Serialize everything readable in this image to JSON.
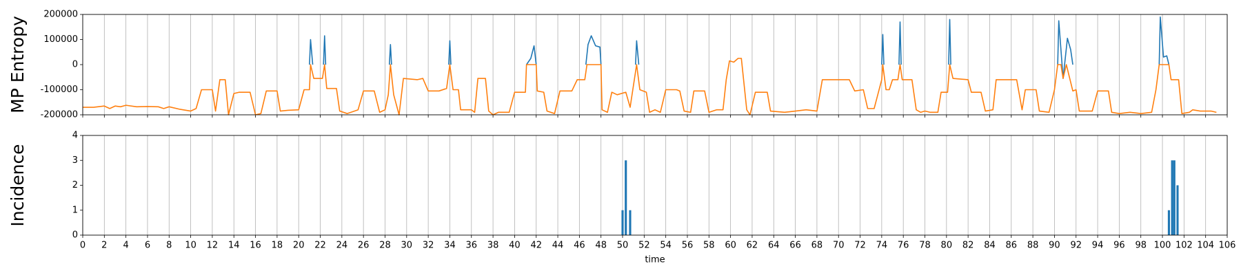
{
  "chart_data": [
    {
      "type": "line",
      "ylabel": "MP Entropy",
      "ylim": [
        -200000,
        200000
      ],
      "yticks": [
        -200000,
        -100000,
        0,
        100000,
        200000
      ],
      "xlim": [
        0,
        106
      ],
      "xticks": [
        0,
        2,
        4,
        6,
        8,
        10,
        12,
        14,
        16,
        18,
        20,
        22,
        24,
        26,
        28,
        30,
        32,
        34,
        36,
        38,
        40,
        42,
        44,
        46,
        48,
        50,
        52,
        54,
        56,
        58,
        60,
        62,
        64,
        66,
        68,
        70,
        72,
        74,
        76,
        78,
        80,
        82,
        84,
        86,
        88,
        90,
        92,
        94,
        96,
        98,
        100,
        102,
        104,
        106
      ],
      "grid": "x",
      "series": [
        {
          "color": "#1f77b4",
          "x": [
            21.0,
            21.1,
            21.3,
            null,
            22.3,
            22.4,
            22.5,
            null,
            28.4,
            28.5,
            28.6,
            null,
            33.9,
            34,
            34.1,
            null,
            41.1,
            41.5,
            41.8,
            42,
            null,
            46.6,
            46.8,
            47.1,
            47.5,
            47.9,
            48,
            null,
            51.2,
            51.3,
            51.5,
            null,
            74,
            74.1,
            74.2,
            null,
            75.6,
            75.7,
            75.8,
            null,
            80.2,
            80.3,
            80.4,
            null,
            90.3,
            90.4,
            90.8,
            91.2,
            91.5,
            91.7,
            null,
            99.7,
            99.8,
            100.1,
            100.4,
            100.6
          ],
          "values": [
            0,
            100000,
            0,
            null,
            0,
            115000,
            0,
            null,
            0,
            80000,
            0,
            null,
            0,
            95000,
            0,
            null,
            0,
            25000,
            75000,
            0,
            null,
            0,
            80000,
            115000,
            75000,
            70000,
            0,
            null,
            0,
            95000,
            0,
            null,
            0,
            120000,
            0,
            null,
            0,
            170000,
            0,
            null,
            0,
            180000,
            0,
            null,
            0,
            175000,
            -55000,
            105000,
            60000,
            0,
            null,
            0,
            190000,
            30000,
            35000,
            0
          ]
        },
        {
          "color": "#ff7f0e",
          "x": [
            0,
            1,
            2,
            2.5,
            3,
            3.5,
            4,
            5,
            6,
            7,
            7.5,
            8,
            9,
            10,
            10.5,
            11,
            12,
            12.3,
            12.7,
            13.2,
            13.5,
            14,
            14.5,
            15.5,
            16,
            16.5,
            17,
            18,
            18.3,
            19,
            20,
            20.5,
            21,
            21.1,
            21.4,
            22.2,
            22.4,
            22.6,
            23.5,
            23.8,
            24.5,
            25.5,
            26,
            27,
            27.5,
            28,
            28.3,
            28.5,
            28.8,
            29.3,
            29.7,
            31,
            31.5,
            32,
            33,
            33.7,
            34,
            34.3,
            34.8,
            35,
            36,
            36.3,
            36.6,
            37.3,
            37.6,
            38,
            38.5,
            39.5,
            40,
            41,
            41.1,
            42,
            42.1,
            42.7,
            43,
            43.7,
            44.2,
            45.3,
            45.8,
            46.5,
            46.7,
            48,
            48.1,
            48.6,
            49,
            49.5,
            50.3,
            50.7,
            51.3,
            51.6,
            52.2,
            52.5,
            53,
            53.5,
            54,
            55,
            55.3,
            55.7,
            56.3,
            56.6,
            57.6,
            58,
            58.7,
            59.3,
            59.6,
            59.9,
            60.3,
            60.7,
            61,
            61.5,
            61.8,
            62.3,
            63.4,
            63.7,
            65,
            66,
            67,
            68,
            68.5,
            69,
            71,
            71.5,
            72.3,
            72.7,
            73.3,
            74,
            74.1,
            74.4,
            74.7,
            75,
            75.5,
            75.7,
            75.9,
            76.8,
            77.2,
            77.6,
            78,
            78.5,
            79.2,
            79.5,
            80.1,
            80.3,
            80.6,
            82,
            82.3,
            83.2,
            83.6,
            84.3,
            84.6,
            86.5,
            87,
            87.3,
            88.3,
            88.6,
            89.5,
            90,
            90.3,
            90.6,
            90.8,
            91.1,
            91.7,
            92,
            92.3,
            93.5,
            94,
            95,
            95.3,
            96,
            97,
            98,
            99,
            99.4,
            99.7,
            100.6,
            100.8,
            101.5,
            101.8,
            102.5,
            102.8,
            103.5,
            104.5,
            105
          ],
          "values": [
            -170000,
            -170000,
            -165000,
            -175000,
            -165000,
            -168000,
            -162000,
            -168000,
            -167000,
            -168000,
            -175000,
            -168000,
            -178000,
            -185000,
            -175000,
            -100000,
            -100000,
            -185000,
            -60000,
            -60000,
            -200000,
            -115000,
            -110000,
            -110000,
            -200000,
            -195000,
            -105000,
            -105000,
            -185000,
            -182000,
            -180000,
            -100000,
            -100000,
            0,
            -55000,
            -55000,
            0,
            -95000,
            -95000,
            -185000,
            -195000,
            -180000,
            -105000,
            -105000,
            -190000,
            -180000,
            -120000,
            0,
            -120000,
            -200000,
            -55000,
            -60000,
            -55000,
            -105000,
            -105000,
            -95000,
            0,
            -100000,
            -100000,
            -180000,
            -180000,
            -190000,
            -55000,
            -55000,
            -185000,
            -200000,
            -190000,
            -190000,
            -110000,
            -110000,
            0,
            0,
            -105000,
            -110000,
            -185000,
            -195000,
            -105000,
            -105000,
            -60000,
            -60000,
            0,
            0,
            -180000,
            -190000,
            -110000,
            -120000,
            -110000,
            -170000,
            0,
            -100000,
            -110000,
            -190000,
            -180000,
            -190000,
            -100000,
            -100000,
            -105000,
            -185000,
            -190000,
            -105000,
            -105000,
            -190000,
            -180000,
            -180000,
            -60000,
            15000,
            10000,
            25000,
            25000,
            -180000,
            -200000,
            -110000,
            -110000,
            -185000,
            -190000,
            -185000,
            -180000,
            -185000,
            -60000,
            -60000,
            -60000,
            -105000,
            -100000,
            -175000,
            -175000,
            -60000,
            0,
            -100000,
            -100000,
            -60000,
            -60000,
            0,
            -60000,
            -60000,
            -180000,
            -190000,
            -185000,
            -190000,
            -190000,
            -110000,
            -110000,
            0,
            -55000,
            -60000,
            -110000,
            -110000,
            -185000,
            -180000,
            -60000,
            -60000,
            -180000,
            -100000,
            -100000,
            -185000,
            -190000,
            -100000,
            0,
            0,
            -55000,
            0,
            -105000,
            -100000,
            -185000,
            -185000,
            -105000,
            -105000,
            -190000,
            -195000,
            -190000,
            -195000,
            -190000,
            -100000,
            0,
            0,
            -60000,
            -60000,
            -195000,
            -190000,
            -180000,
            -185000,
            -185000,
            -190000
          ]
        }
      ]
    },
    {
      "type": "bar",
      "ylabel": "Incidence",
      "xlabel": "time",
      "ylim": [
        0,
        4
      ],
      "yticks": [
        0,
        1,
        2,
        3,
        4
      ],
      "xlim": [
        0,
        106
      ],
      "xticks": [
        0,
        2,
        4,
        6,
        8,
        10,
        12,
        14,
        16,
        18,
        20,
        22,
        24,
        26,
        28,
        30,
        32,
        34,
        36,
        38,
        40,
        42,
        44,
        46,
        48,
        50,
        52,
        54,
        56,
        58,
        60,
        62,
        64,
        66,
        68,
        70,
        72,
        74,
        76,
        78,
        80,
        82,
        84,
        86,
        88,
        90,
        92,
        94,
        96,
        98,
        100,
        102,
        104,
        106
      ],
      "grid": "x",
      "color": "#1f77b4",
      "x": [
        50,
        50.3,
        50.7,
        100.6,
        100.9,
        101.1,
        101.4
      ],
      "values": [
        1,
        3,
        1,
        1,
        3,
        3,
        2
      ]
    }
  ]
}
